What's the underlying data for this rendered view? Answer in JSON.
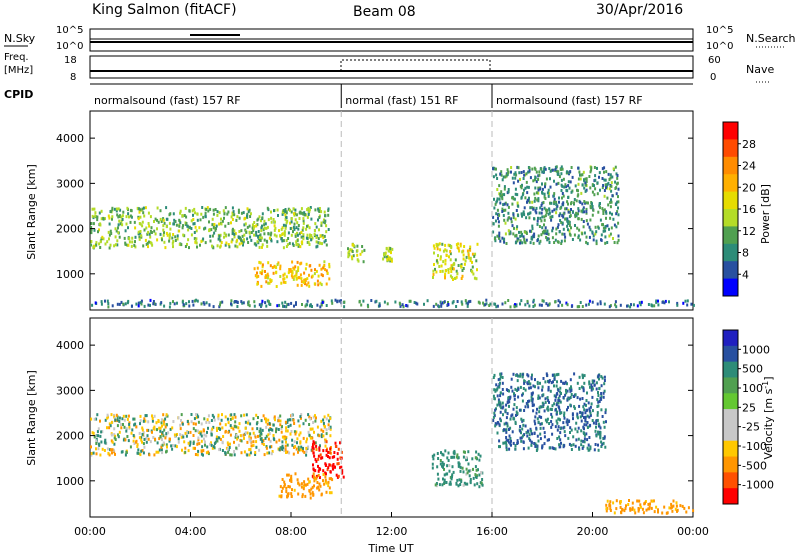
{
  "header": {
    "station": "King Salmon (fitACF)",
    "beam": "Beam 08",
    "date": "30/Apr/2016"
  },
  "panels": {
    "nsky": {
      "label": "N.Sky",
      "ticks": [
        "10^5",
        "10^0"
      ],
      "right_label": "N.Search",
      "right_ticks": [
        "10^5",
        "10^0"
      ]
    },
    "freq": {
      "label_line1": "Freq.",
      "label_line2": "[MHz]",
      "ticks": [
        "18",
        "8"
      ],
      "right_label": "Nave",
      "right_ticks": [
        "60",
        "0"
      ]
    },
    "cpid": {
      "label": "CPID",
      "segments": [
        {
          "text": "normalsound (fast) 157 RF",
          "start_h": 0,
          "end_h": 10
        },
        {
          "text": "normal (fast) 151 RF",
          "start_h": 10,
          "end_h": 16
        },
        {
          "text": "normalsound (fast) 157 RF",
          "start_h": 16,
          "end_h": 24
        }
      ]
    },
    "power": {
      "ylabel": "Slant Range [km]",
      "yticks": [
        "4000",
        "3000",
        "2000",
        "1000"
      ],
      "cbar_label": "Power [dB]",
      "cbar_ticks": [
        "28",
        "24",
        "20",
        "16",
        "12",
        "8",
        "4"
      ],
      "cbar_colors": [
        "#ff0000",
        "#ff4b00",
        "#ff8c00",
        "#ffb000",
        "#e6dc00",
        "#b4dc28",
        "#50a050",
        "#2d8c78",
        "#2850a0",
        "#0000ff"
      ]
    },
    "velocity": {
      "ylabel": "Slant Range [km]",
      "yticks": [
        "4000",
        "3000",
        "2000",
        "1000"
      ],
      "cbar_label": "Velocity [m s",
      "cbar_label_sup": "-1",
      "cbar_label_end": "]",
      "cbar_ticks": [
        "1000",
        "500",
        "100",
        "25",
        "-25",
        "-100",
        "-500",
        "-1000"
      ],
      "cbar_colors": [
        "#2020c0",
        "#2850a0",
        "#2d8c78",
        "#50a050",
        "#64c832",
        "#c8c8c8",
        "#c8c8c8",
        "#ffc800",
        "#ff9600",
        "#ff5000",
        "#ff0000"
      ]
    }
  },
  "xaxis": {
    "label": "Time UT",
    "ticks": [
      "00:00",
      "04:00",
      "08:00",
      "12:00",
      "16:00",
      "20:00",
      "00:00"
    ]
  },
  "chart_data": [
    {
      "type": "heatmap",
      "title": "",
      "quantity": "Power [dB]",
      "xlabel": "Time UT",
      "ylabel": "Slant Range [km]",
      "xlim_hours": [
        0,
        24
      ],
      "ylim_km": [
        200,
        4600
      ],
      "colorbar_range_db": [
        0,
        32
      ],
      "regions": [
        {
          "t": [
            0.0,
            9.5
          ],
          "r": [
            1600,
            2500
          ],
          "level_db": 12
        },
        {
          "t": [
            6.5,
            9.5
          ],
          "r": [
            750,
            1300
          ],
          "level_db": 20
        },
        {
          "t": [
            10.2,
            10.9
          ],
          "r": [
            1300,
            1700
          ],
          "level_db": 14
        },
        {
          "t": [
            11.6,
            12.0
          ],
          "r": [
            1300,
            1600
          ],
          "level_db": 14
        },
        {
          "t": [
            13.6,
            15.4
          ],
          "r": [
            900,
            1700
          ],
          "level_db": 16
        },
        {
          "t": [
            16.0,
            21.0
          ],
          "r": [
            1700,
            3400
          ],
          "level_db": 8
        },
        {
          "t": [
            0.0,
            24.0
          ],
          "r": [
            300,
            450
          ],
          "level_db": 6
        }
      ]
    },
    {
      "type": "heatmap",
      "title": "",
      "quantity": "Velocity [m s^-1]",
      "xlabel": "Time UT",
      "ylabel": "Slant Range [km]",
      "xlim_hours": [
        0,
        24
      ],
      "ylim_km": [
        200,
        4600
      ],
      "colorbar_range": [
        -1000,
        1000
      ],
      "regions": [
        {
          "t": [
            0.0,
            9.6
          ],
          "r": [
            1600,
            2500
          ],
          "velocity": 0
        },
        {
          "t": [
            8.8,
            10.1
          ],
          "r": [
            1100,
            1900
          ],
          "velocity": -900
        },
        {
          "t": [
            7.5,
            9.6
          ],
          "r": [
            650,
            1200
          ],
          "velocity": -200
        },
        {
          "t": [
            13.6,
            15.6
          ],
          "r": [
            900,
            1700
          ],
          "velocity": 150
        },
        {
          "t": [
            16.0,
            20.5
          ],
          "r": [
            1700,
            3400
          ],
          "velocity": 300
        },
        {
          "t": [
            20.5,
            24.0
          ],
          "r": [
            300,
            600
          ],
          "velocity": -200
        }
      ]
    }
  ]
}
